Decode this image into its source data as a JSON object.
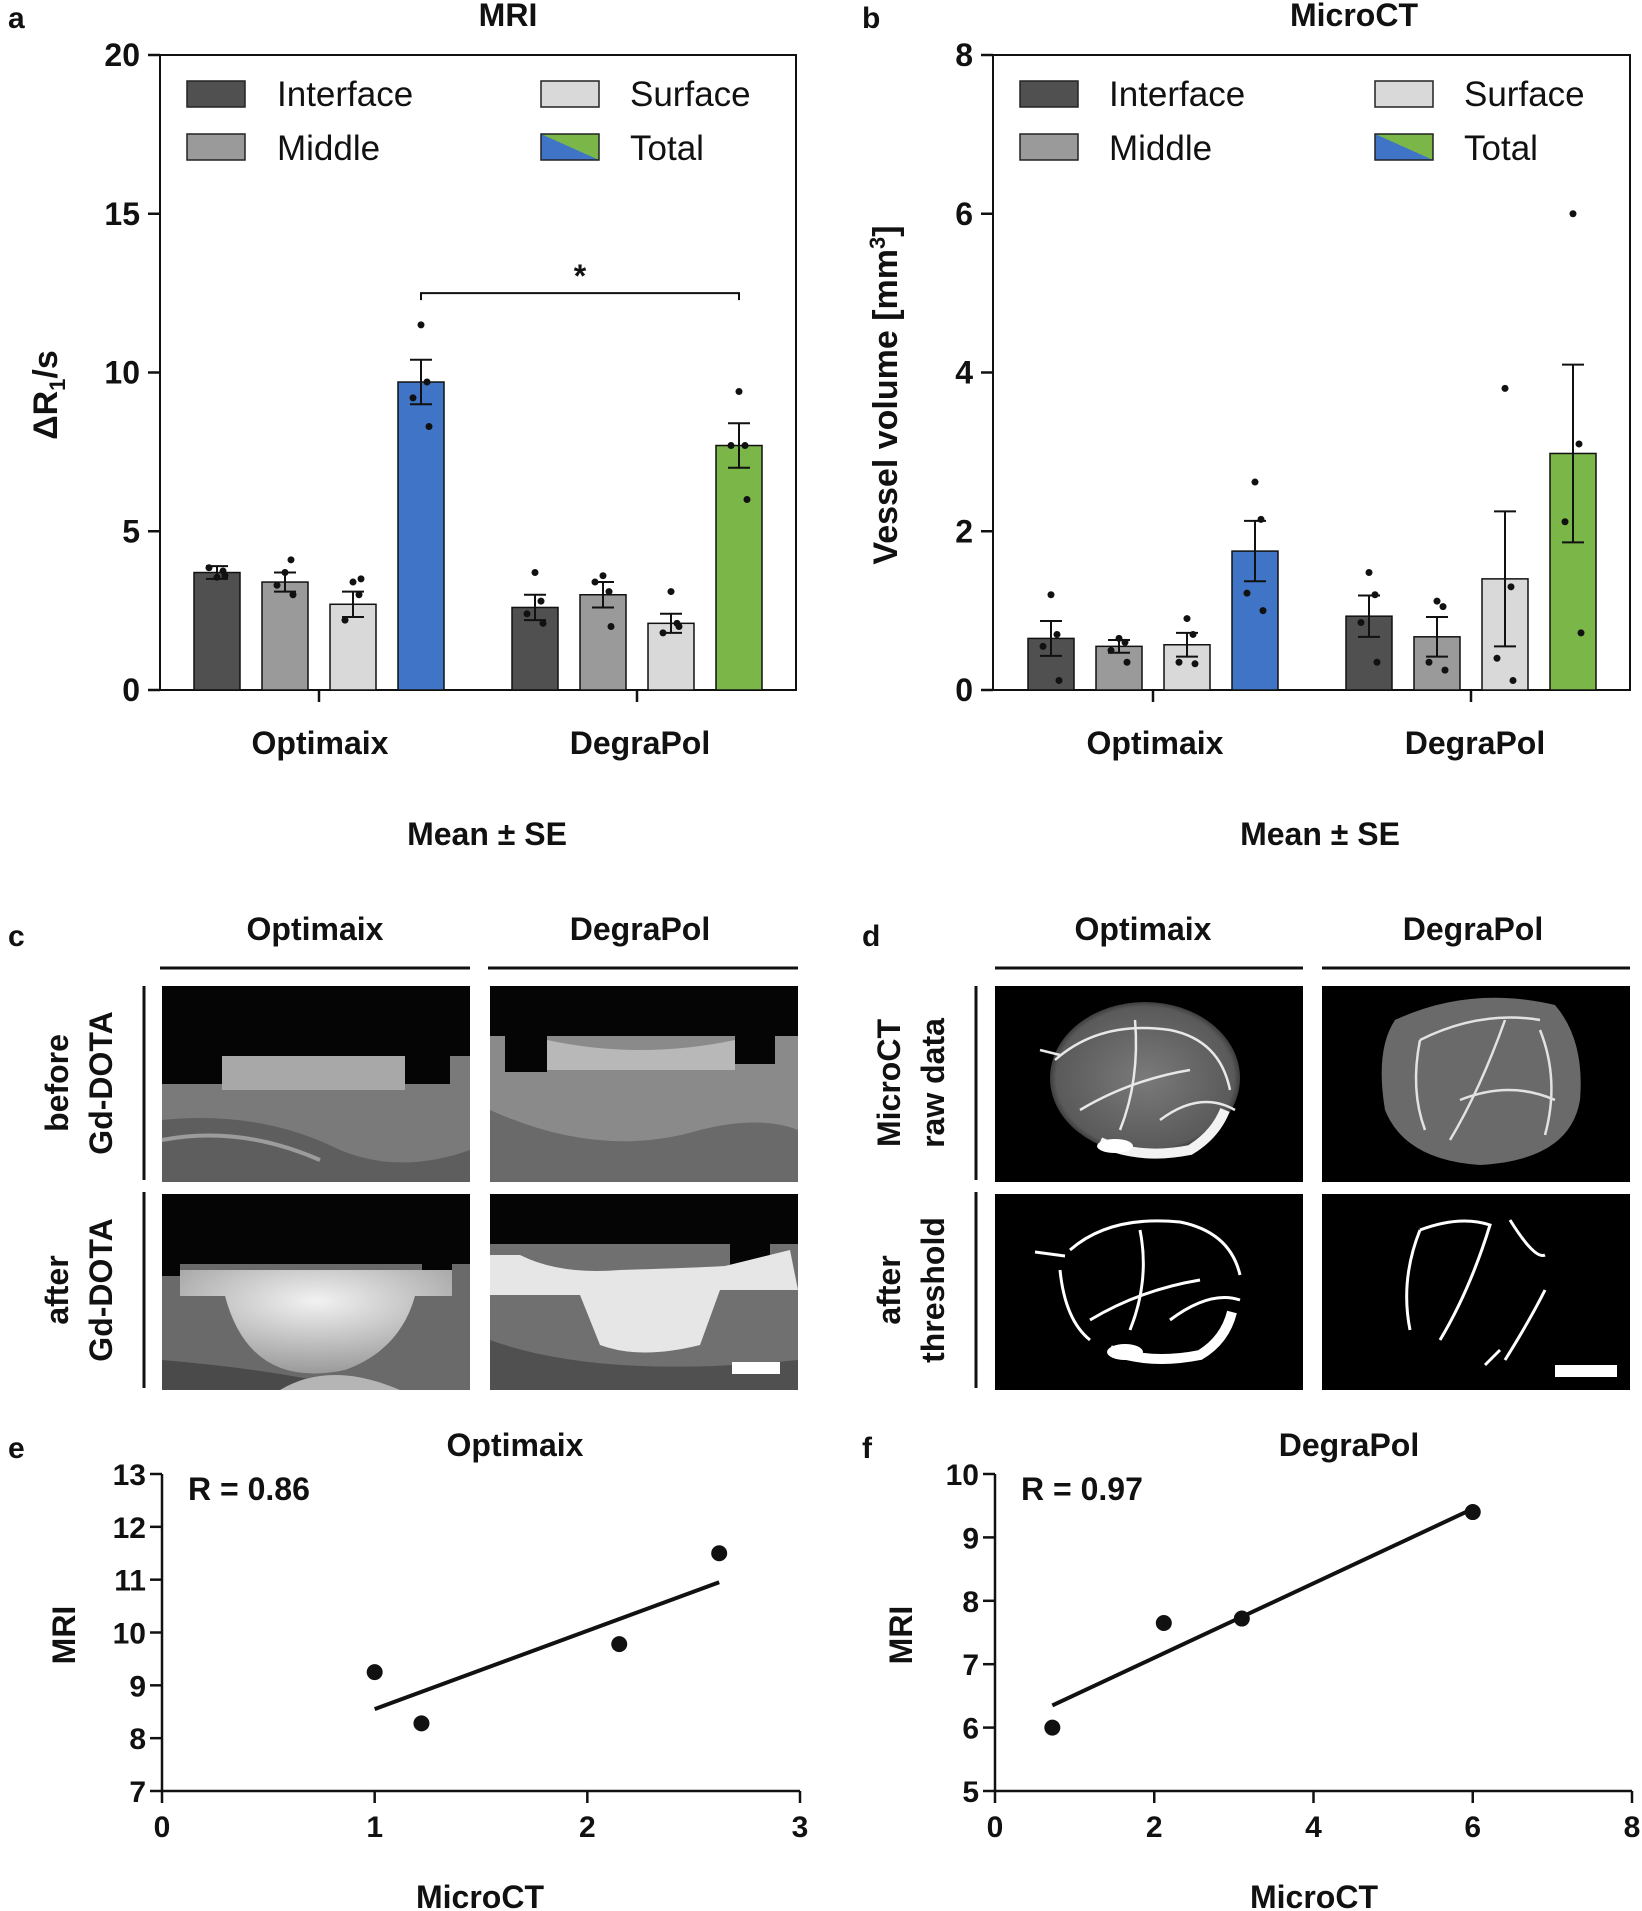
{
  "colors": {
    "interface": "#505050",
    "middle": "#9a9a9a",
    "surface": "#d9d9d9",
    "total_blue": "#3f74c6",
    "total_green": "#7ab648",
    "axis": "#111111"
  },
  "panel_letters": [
    "a",
    "b",
    "c",
    "d",
    "e",
    "f"
  ],
  "chart_data": [
    {
      "id": "a",
      "type": "bar",
      "title": "MRI",
      "ylabel_main": "ΔR",
      "ylabel_sub": "1",
      "ylabel_tail": "/s",
      "xlabel": "Mean ± SE",
      "ylim": [
        0,
        20
      ],
      "yticks": [
        "0",
        "5",
        "10",
        "15",
        "20"
      ],
      "groups": [
        "Optimaix",
        "DegraPol"
      ],
      "legend": [
        "Interface",
        "Middle",
        "Surface",
        "Total"
      ],
      "bars": [
        {
          "group": "Optimaix",
          "series": "Interface",
          "mean": 3.7,
          "se": 0.2,
          "points": [
            3.55,
            3.75,
            3.85,
            3.6
          ]
        },
        {
          "group": "Optimaix",
          "series": "Middle",
          "mean": 3.4,
          "se": 0.3,
          "points": [
            3.7,
            4.1,
            3.3,
            3.0
          ]
        },
        {
          "group": "Optimaix",
          "series": "Surface",
          "mean": 2.7,
          "se": 0.4,
          "points": [
            3.4,
            3.0,
            2.2,
            3.5
          ]
        },
        {
          "group": "Optimaix",
          "series": "Total",
          "mean": 9.7,
          "se": 0.7,
          "points": [
            11.5,
            9.7,
            9.2,
            8.3
          ]
        },
        {
          "group": "DegraPol",
          "series": "Interface",
          "mean": 2.6,
          "se": 0.4,
          "points": [
            3.7,
            2.8,
            2.4,
            2.1
          ]
        },
        {
          "group": "DegraPol",
          "series": "Middle",
          "mean": 3.0,
          "se": 0.4,
          "points": [
            3.6,
            3.1,
            3.4,
            2.0
          ]
        },
        {
          "group": "DegraPol",
          "series": "Surface",
          "mean": 2.1,
          "se": 0.3,
          "points": [
            3.1,
            2.1,
            1.8,
            2.0
          ]
        },
        {
          "group": "DegraPol",
          "series": "Total",
          "mean": 7.7,
          "se": 0.7,
          "points": [
            9.4,
            7.7,
            7.7,
            6.0
          ]
        }
      ],
      "significance": {
        "from": "Optimaix Total",
        "to": "DegraPol Total",
        "label": "*",
        "y": 12.5
      }
    },
    {
      "id": "b",
      "type": "bar",
      "title": "MicroCT",
      "ylabel_main": "Vessel volume [mm",
      "ylabel_sup": "3",
      "ylabel_tail": "]",
      "xlabel": "Mean ± SE",
      "ylim": [
        0,
        8
      ],
      "yticks": [
        "0",
        "2",
        "4",
        "6",
        "8"
      ],
      "groups": [
        "Optimaix",
        "DegraPol"
      ],
      "legend": [
        "Interface",
        "Middle",
        "Surface",
        "Total"
      ],
      "bars": [
        {
          "group": "Optimaix",
          "series": "Interface",
          "mean": 0.65,
          "se": 0.22,
          "points": [
            1.2,
            0.7,
            0.55,
            0.12
          ]
        },
        {
          "group": "Optimaix",
          "series": "Middle",
          "mean": 0.55,
          "se": 0.08,
          "points": [
            0.65,
            0.6,
            0.5,
            0.35
          ]
        },
        {
          "group": "Optimaix",
          "series": "Surface",
          "mean": 0.57,
          "se": 0.15,
          "points": [
            0.9,
            0.7,
            0.35,
            0.33
          ]
        },
        {
          "group": "Optimaix",
          "series": "Total",
          "mean": 1.75,
          "se": 0.38,
          "points": [
            2.62,
            2.15,
            1.22,
            1.0
          ]
        },
        {
          "group": "DegraPol",
          "series": "Interface",
          "mean": 0.93,
          "se": 0.26,
          "points": [
            1.48,
            1.2,
            0.85,
            0.35
          ]
        },
        {
          "group": "DegraPol",
          "series": "Middle",
          "mean": 0.67,
          "se": 0.25,
          "points": [
            1.12,
            1.05,
            0.35,
            0.25
          ]
        },
        {
          "group": "DegraPol",
          "series": "Surface",
          "mean": 1.4,
          "se": 0.85,
          "points": [
            3.8,
            1.3,
            0.4,
            0.12
          ]
        },
        {
          "group": "DegraPol",
          "series": "Total",
          "mean": 2.98,
          "se": 1.12,
          "points": [
            6.0,
            3.1,
            2.12,
            0.72
          ]
        }
      ]
    },
    {
      "id": "e",
      "type": "scatter",
      "title": "Optimaix",
      "xlabel": "MicroCT",
      "ylabel": "MRI",
      "xlim": [
        0,
        3
      ],
      "ylim": [
        7,
        13
      ],
      "xticks": [
        "0",
        "1",
        "2",
        "3"
      ],
      "yticks": [
        "7",
        "8",
        "9",
        "10",
        "11",
        "12",
        "13"
      ],
      "annotation": "R = 0.86",
      "x": [
        1.0,
        1.22,
        2.15,
        2.62
      ],
      "y": [
        9.25,
        8.28,
        9.78,
        11.5
      ],
      "fit_line": {
        "x": [
          1.0,
          2.62
        ],
        "y": [
          8.55,
          10.95
        ]
      }
    },
    {
      "id": "f",
      "type": "scatter",
      "title": "DegraPol",
      "xlabel": "MicroCT",
      "ylabel": "MRI",
      "xlim": [
        0,
        8
      ],
      "ylim": [
        5,
        10
      ],
      "xticks": [
        "0",
        "2",
        "4",
        "6",
        "8"
      ],
      "yticks": [
        "5",
        "6",
        "7",
        "8",
        "9",
        "10"
      ],
      "annotation": "R = 0.97",
      "x": [
        0.72,
        2.12,
        3.1,
        6.0
      ],
      "y": [
        6.0,
        7.65,
        7.72,
        9.4
      ],
      "fit_line": {
        "x": [
          0.72,
          6.0
        ],
        "y": [
          6.35,
          9.45
        ]
      }
    }
  ],
  "panel_c": {
    "columns": [
      "Optimaix",
      "DegraPol"
    ],
    "rows": [
      [
        "before",
        "Gd-DOTA"
      ],
      [
        "after",
        "Gd-DOTA"
      ]
    ]
  },
  "panel_d": {
    "columns": [
      "Optimaix",
      "DegraPol"
    ],
    "rows": [
      [
        "MicroCT",
        "raw data"
      ],
      [
        "after",
        "threshold"
      ]
    ]
  }
}
